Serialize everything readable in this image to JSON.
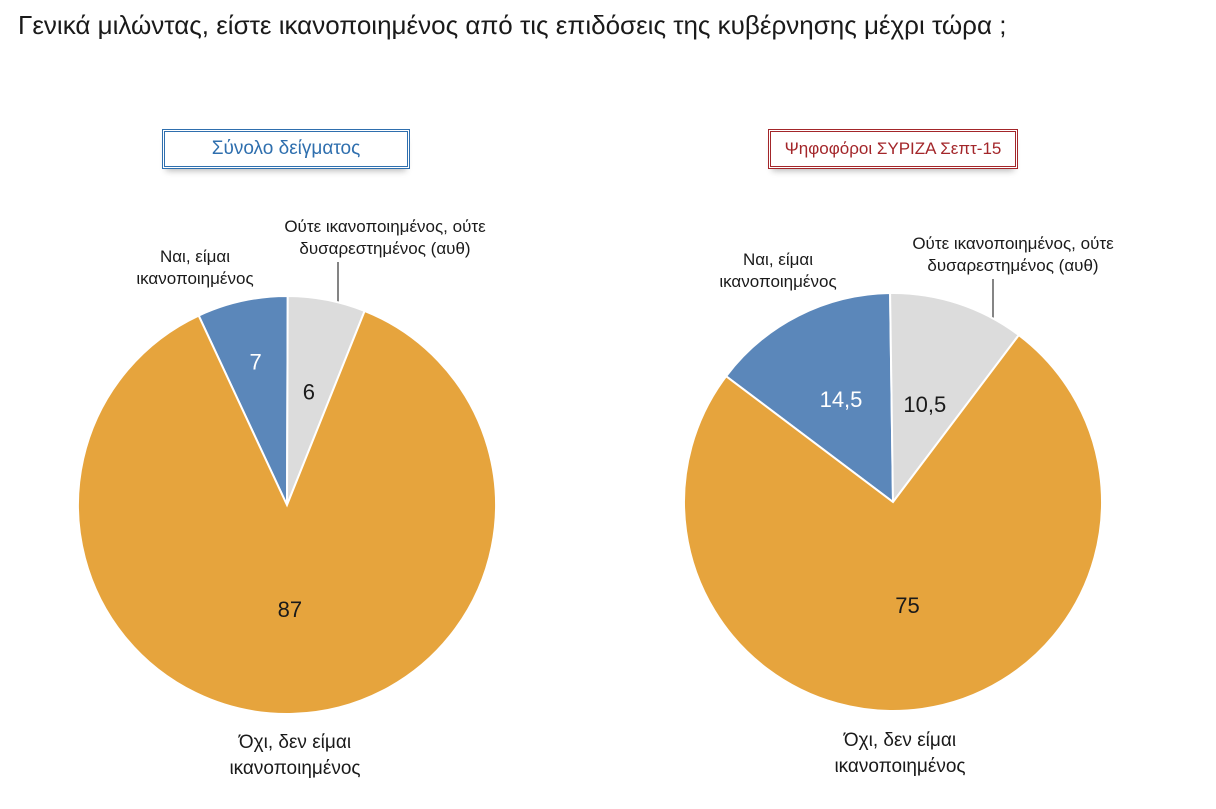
{
  "title": "Γενικά μιλώντας, είστε ικανοποιημένος από τις επιδόσεις της κυβέρνησης μέχρι τώρα ;",
  "colors": {
    "yes": "#5b87ba",
    "neutral": "#dcdcdc",
    "no": "#e6a43d",
    "blue_badge": "#2f6fae",
    "red_badge": "#a3262a"
  },
  "chart_data": [
    {
      "type": "pie",
      "title": "Σύνολο δείγματος",
      "categories": [
        "Ναι, είμαι ικανοποιημένος",
        "Ούτε ικανοποιημένος, ούτε δυσαρεστημένος (αυθ)",
        "Όχι, δεν είμαι ικανοποιημένος"
      ],
      "values": [
        7,
        6,
        87
      ],
      "value_labels": [
        "7",
        "6",
        "87"
      ]
    },
    {
      "type": "pie",
      "title": "Ψηφοφόροι ΣΥΡΙΖΑ Σεπτ-15",
      "categories": [
        "Ναι, είμαι ικανοποιημένος",
        "Ούτε ικανοποιημένος, ούτε δυσαρεστημένος (αυθ)",
        "Όχι, δεν είμαι ικανοποιημένος"
      ],
      "values": [
        14.5,
        10.5,
        75
      ],
      "value_labels": [
        "14,5",
        "10,5",
        "75"
      ]
    }
  ],
  "labels": {
    "yes_line1": "Ναι, είμαι",
    "yes_line2": "ικανοποιημένος",
    "neutral_line1": "Ούτε ικανοποιημένος, ούτε",
    "neutral_line2": "δυσαρεστημένος (αυθ)",
    "no_line1": "Όχι, δεν είμαι",
    "no_line2": "ικανοποιημένος"
  }
}
